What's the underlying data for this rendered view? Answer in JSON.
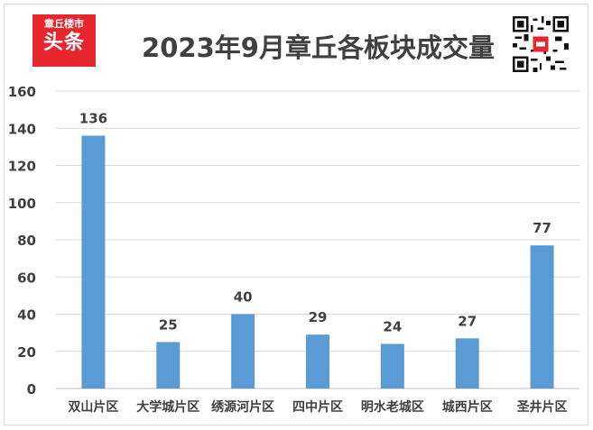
{
  "logo": {
    "line1": "章丘楼市",
    "line2": "头条"
  },
  "chart_data": {
    "type": "bar",
    "title": "2023年9月章丘各板块成交量",
    "categories": [
      "双山片区",
      "大学城片区",
      "绣源河片区",
      "四中片区",
      "明水老城区",
      "城西片区",
      "圣井片区"
    ],
    "values": [
      136,
      25,
      40,
      29,
      24,
      27,
      77
    ],
    "ylim": [
      0,
      160
    ],
    "yticks": [
      0,
      20,
      40,
      60,
      80,
      100,
      120,
      140,
      160
    ],
    "grid": true,
    "data_labels": true,
    "bar_color": "#5b9bd5"
  }
}
